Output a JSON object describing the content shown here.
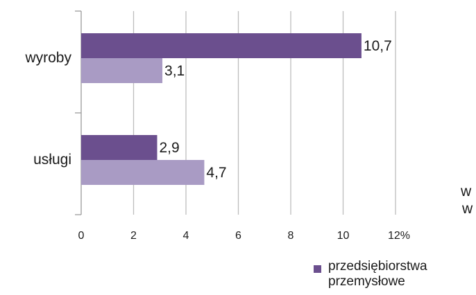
{
  "chart_data": {
    "type": "bar",
    "orientation": "horizontal",
    "categories": [
      "wyroby",
      "usługi"
    ],
    "series": [
      {
        "name": "przedsiębiorstwa przemysłowe",
        "values": [
          10.7,
          2.9
        ],
        "labels": [
          "10,7",
          "2,9"
        ],
        "color": "#6b4f8e"
      },
      {
        "name": "",
        "values": [
          3.1,
          4.7
        ],
        "labels": [
          "3,1",
          "4,7"
        ],
        "color": "#a99bc4"
      }
    ],
    "xlim": [
      0,
      12
    ],
    "x_ticks": [
      "0",
      "2",
      "4",
      "6",
      "8",
      "10",
      "12%"
    ],
    "grid": "vertical",
    "legend_placement": "bottom-right"
  },
  "legend": {
    "items": [
      {
        "label": "przedsiębiorstwa\nprzemysłowe",
        "color": "#6b4f8e"
      }
    ]
  },
  "clipped_text": {
    "line1": "w",
    "line2": "w"
  }
}
